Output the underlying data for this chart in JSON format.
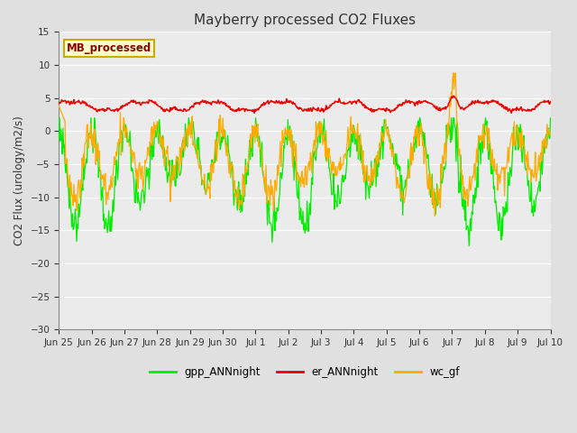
{
  "title": "Mayberry processed CO2 Fluxes",
  "ylabel": "CO2 Flux (urology/m2/s)",
  "ylim": [
    -30,
    15
  ],
  "yticks": [
    -30,
    -25,
    -20,
    -15,
    -10,
    -5,
    0,
    5,
    10,
    15
  ],
  "bg_outer": "#e0e0e0",
  "bg_inner": "#ebebeb",
  "grid_color": "#ffffff",
  "legend_label": "MB_processed",
  "legend_label_color": "#8b0000",
  "legend_box_facecolor": "#ffffcc",
  "legend_box_edgecolor": "#ccaa00",
  "line_green": "#00ee00",
  "line_red": "#ee0000",
  "line_orange": "#ffaa00",
  "n_days": 15,
  "ppd": 48,
  "x_tick_labels": [
    "Jun 25",
    "Jun 26",
    "Jun 27",
    "Jun 28",
    "Jun 29",
    "Jun 30",
    "Jul 1",
    "Jul 2",
    "Jul 3",
    "Jul 4",
    "Jul 5",
    "Jul 6",
    "Jul 7",
    "Jul 8",
    "Jul 9",
    "Jul 10"
  ]
}
